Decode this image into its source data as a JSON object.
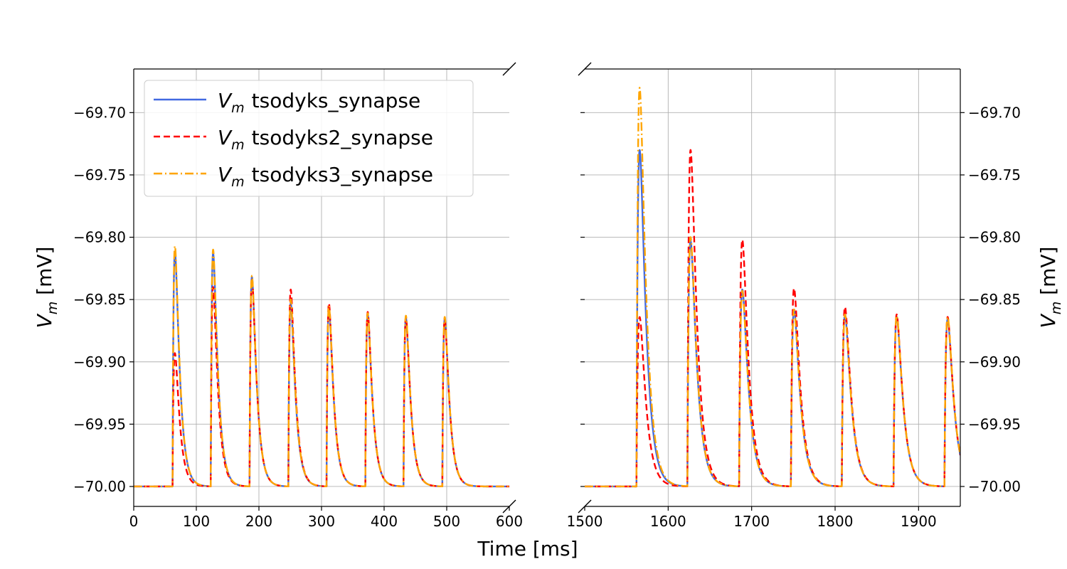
{
  "chart_data": {
    "type": "line",
    "xlabel": "Time [ms]",
    "ylabel_main": "V",
    "ylabel_sub": "m",
    "ylabel_unit": " [mV]",
    "legend_prefix_main": "V",
    "legend_prefix_sub": "m",
    "legend_position": "upper-left",
    "ylim": [
      -70.016,
      -69.665
    ],
    "y_ticks": [
      -70.0,
      -69.95,
      -69.9,
      -69.85,
      -69.8,
      -69.75,
      -69.7
    ],
    "y_tick_labels": [
      "−70.00",
      "−69.95",
      "−69.90",
      "−69.85",
      "−69.80",
      "−69.75",
      "−69.70"
    ],
    "grid": true,
    "broken_x_axis": true,
    "panels": [
      {
        "name": "left",
        "xlim": [
          0,
          600
        ],
        "x_ticks": [
          0,
          100,
          200,
          300,
          400,
          500,
          600
        ],
        "x_tick_labels": [
          "0",
          "100",
          "200",
          "300",
          "400",
          "500",
          "600"
        ],
        "spike_times": [
          62,
          123,
          185,
          247,
          308,
          370,
          431,
          493
        ]
      },
      {
        "name": "right",
        "xlim": [
          1500,
          1950
        ],
        "x_ticks": [
          1500,
          1600,
          1700,
          1800,
          1900
        ],
        "x_tick_labels": [
          "1500",
          "1600",
          "1700",
          "1800",
          "1900"
        ],
        "spike_times": [
          1562,
          1623,
          1685,
          1747,
          1808,
          1870,
          1931
        ]
      }
    ],
    "resting_potential": -70.0,
    "series": [
      {
        "name": "tsodyks_synapse",
        "color": "#4169e1",
        "dash": "none",
        "left_peaks": [
          -69.812,
          -69.813,
          -69.832,
          -69.853,
          -69.857,
          -69.862,
          -69.865,
          -69.866
        ],
        "right_peaks": [
          -69.73,
          -69.803,
          -69.842,
          -69.858,
          -69.862,
          -69.864,
          -69.866
        ]
      },
      {
        "name": "tsodyks2_synapse",
        "color": "#ff0000",
        "dash": "9,5",
        "left_peaks": [
          -69.893,
          -69.84,
          -69.833,
          -69.842,
          -69.853,
          -69.86,
          -69.864,
          -69.866
        ],
        "right_peaks": [
          -69.864,
          -69.73,
          -69.802,
          -69.841,
          -69.856,
          -69.862,
          -69.864
        ]
      },
      {
        "name": "tsodyks3_synapse",
        "color": "#ffa500",
        "dash": "12,4,2,4",
        "left_peaks": [
          -69.807,
          -69.81,
          -69.831,
          -69.85,
          -69.855,
          -69.861,
          -69.863,
          -69.864
        ],
        "right_peaks": [
          -69.68,
          -69.8,
          -69.843,
          -69.858,
          -69.862,
          -69.863,
          -69.864
        ]
      }
    ]
  }
}
